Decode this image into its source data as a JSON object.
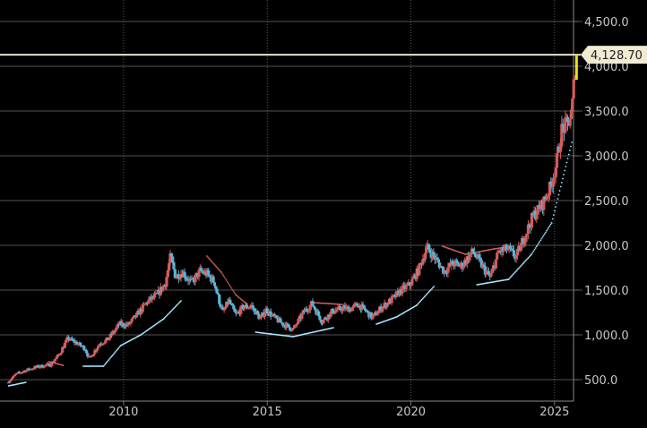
{
  "chart_data": {
    "type": "candlestick",
    "title": "",
    "xlabel": "",
    "ylabel": "",
    "ylim": [
      420,
      4600
    ],
    "xlim": [
      2006.0,
      2025.9
    ],
    "x_ticks": [
      {
        "value": 2010,
        "label": "2010"
      },
      {
        "value": 2015,
        "label": "2015"
      },
      {
        "value": 2020,
        "label": "2020"
      },
      {
        "value": 2025,
        "label": "2025"
      }
    ],
    "y_ticks": [
      {
        "value": 500,
        "label": "500.0"
      },
      {
        "value": 1000,
        "label": "1,000.0"
      },
      {
        "value": 1500,
        "label": "1,500.0"
      },
      {
        "value": 2000,
        "label": "2,000.0"
      },
      {
        "value": 2500,
        "label": "2,500.0"
      },
      {
        "value": 3000,
        "label": "3,000.0"
      },
      {
        "value": 3500,
        "label": "3,500.0"
      },
      {
        "value": 4000,
        "label": "4,000.0"
      },
      {
        "value": 4500,
        "label": "4,500.0"
      }
    ],
    "grid": true,
    "last_price": {
      "value": 4128.7,
      "label": "4,128.70"
    },
    "price_path": [
      [
        2006.0,
        470
      ],
      [
        2006.3,
        560
      ],
      [
        2006.6,
        600
      ],
      [
        2007.0,
        640
      ],
      [
        2007.5,
        670
      ],
      [
        2007.8,
        780
      ],
      [
        2008.1,
        960
      ],
      [
        2008.4,
        910
      ],
      [
        2008.7,
        850
      ],
      [
        2008.85,
        730
      ],
      [
        2009.2,
        900
      ],
      [
        2009.5,
        950
      ],
      [
        2009.9,
        1120
      ],
      [
        2010.2,
        1110
      ],
      [
        2010.5,
        1220
      ],
      [
        2010.9,
        1380
      ],
      [
        2011.2,
        1440
      ],
      [
        2011.5,
        1580
      ],
      [
        2011.68,
        1880
      ],
      [
        2011.85,
        1650
      ],
      [
        2012.1,
        1700
      ],
      [
        2012.4,
        1580
      ],
      [
        2012.7,
        1710
      ],
      [
        2012.95,
        1680
      ],
      [
        2013.2,
        1590
      ],
      [
        2013.35,
        1400
      ],
      [
        2013.5,
        1250
      ],
      [
        2013.7,
        1380
      ],
      [
        2013.95,
        1220
      ],
      [
        2014.2,
        1310
      ],
      [
        2014.5,
        1320
      ],
      [
        2014.8,
        1180
      ],
      [
        2015.0,
        1280
      ],
      [
        2015.3,
        1190
      ],
      [
        2015.6,
        1120
      ],
      [
        2015.95,
        1060
      ],
      [
        2016.3,
        1250
      ],
      [
        2016.6,
        1350
      ],
      [
        2016.95,
        1150
      ],
      [
        2017.3,
        1260
      ],
      [
        2017.7,
        1300
      ],
      [
        2017.95,
        1290
      ],
      [
        2018.2,
        1340
      ],
      [
        2018.5,
        1260
      ],
      [
        2018.7,
        1190
      ],
      [
        2019.0,
        1300
      ],
      [
        2019.4,
        1400
      ],
      [
        2019.7,
        1500
      ],
      [
        2020.0,
        1560
      ],
      [
        2020.3,
        1720
      ],
      [
        2020.6,
        1980
      ],
      [
        2020.9,
        1850
      ],
      [
        2021.2,
        1710
      ],
      [
        2021.5,
        1800
      ],
      [
        2021.8,
        1770
      ],
      [
        2022.2,
        1930
      ],
      [
        2022.6,
        1730
      ],
      [
        2022.8,
        1640
      ],
      [
        2023.1,
        1930
      ],
      [
        2023.4,
        1960
      ],
      [
        2023.7,
        1870
      ],
      [
        2023.95,
        2060
      ],
      [
        2024.3,
        2330
      ],
      [
        2024.6,
        2450
      ],
      [
        2024.9,
        2650
      ],
      [
        2025.1,
        2900
      ],
      [
        2025.3,
        3300
      ],
      [
        2025.5,
        3350
      ],
      [
        2025.65,
        3500
      ],
      [
        2025.78,
        4128.7
      ]
    ],
    "sar_down": [
      [
        2007.4,
        700
      ],
      [
        2007.9,
        660
      ],
      [
        2012.9,
        1880
      ],
      [
        2013.4,
        1700
      ],
      [
        2013.9,
        1450
      ],
      [
        2014.3,
        1340
      ],
      [
        2016.6,
        1360
      ],
      [
        2017.6,
        1340
      ],
      [
        2019.0,
        1360
      ],
      [
        2021.1,
        1990
      ],
      [
        2021.9,
        1900
      ],
      [
        2022.9,
        1960
      ],
      [
        2023.5,
        1990
      ]
    ],
    "sar_up": [
      [
        2006.0,
        430
      ],
      [
        2006.6,
        470
      ],
      [
        2008.6,
        650
      ],
      [
        2009.3,
        650
      ],
      [
        2009.9,
        880
      ],
      [
        2010.6,
        1000
      ],
      [
        2011.4,
        1180
      ],
      [
        2012.0,
        1380
      ],
      [
        2014.6,
        1030
      ],
      [
        2015.9,
        980
      ],
      [
        2017.3,
        1080
      ],
      [
        2018.8,
        1120
      ],
      [
        2019.5,
        1200
      ],
      [
        2020.2,
        1330
      ],
      [
        2020.8,
        1540
      ],
      [
        2022.3,
        1560
      ],
      [
        2023.4,
        1620
      ],
      [
        2024.2,
        1900
      ],
      [
        2024.9,
        2250
      ],
      [
        2025.6,
        3150
      ]
    ],
    "colors": {
      "up": "#d55b5b",
      "down": "#5ab4d6",
      "grid": "#6e6e6e",
      "axis_text": "#c8c8c8",
      "price_line": "#e7e2c4",
      "price_label_bg": "#f1ead2",
      "price_label_text": "#202020",
      "marker": "#e6e01c"
    }
  }
}
